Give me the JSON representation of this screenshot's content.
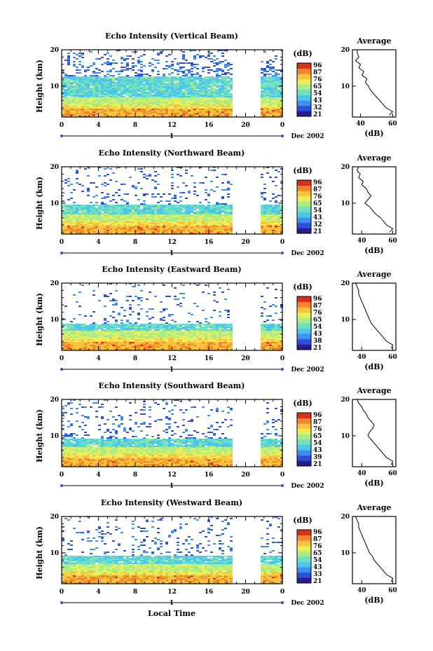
{
  "figure": {
    "xlabel": "Local Time",
    "date_label": "Dec 2002",
    "day_marker": "1"
  },
  "colorbar": {
    "unit_label": "(dB)",
    "colors": [
      "#2a1c8c",
      "#2f4fd6",
      "#3f8ff0",
      "#4cc7ea",
      "#6fe0c4",
      "#a6ec8a",
      "#e8ef5a",
      "#f6c43c",
      "#f2862c",
      "#d9301c"
    ]
  },
  "chart_data": [
    {
      "type": "heatmap",
      "title": "Echo Intensity (Vertical Beam)",
      "xlabel": "",
      "ylabel": "Height (km)",
      "x_ticks": [
        "0",
        "4",
        "8",
        "12",
        "16",
        "20",
        "0"
      ],
      "y_ticks": [
        "10",
        "20"
      ],
      "xlim": [
        0,
        24
      ],
      "ylim": [
        1.5,
        20
      ],
      "data_gaps_hours": [
        [
          18.3,
          21.6
        ]
      ],
      "colorbar_ticks": [
        "96",
        "87",
        "76",
        "65",
        "54",
        "43",
        "32",
        "21"
      ],
      "average_profile": {
        "title": "Average",
        "xlabel": "(dB)",
        "x_ticks": [
          "40",
          "60"
        ],
        "y_ticks": [
          "10",
          "20"
        ],
        "xlim": [
          35,
          62
        ],
        "height": [
          20,
          19,
          18,
          17,
          16,
          15,
          14,
          13,
          12,
          11,
          10,
          9,
          8,
          7,
          6,
          5,
          4,
          3,
          2
        ],
        "value": [
          38,
          38,
          39,
          37,
          40,
          39,
          42,
          41,
          44,
          43,
          45,
          46,
          48,
          50,
          52,
          54,
          56,
          60,
          58
        ]
      }
    },
    {
      "type": "heatmap",
      "title": "Echo Intensity (Northward Beam)",
      "xlabel": "",
      "ylabel": "Height (km)",
      "x_ticks": [
        "0",
        "4",
        "8",
        "12",
        "16",
        "20",
        "0"
      ],
      "y_ticks": [
        "10",
        "20"
      ],
      "xlim": [
        0,
        24
      ],
      "ylim": [
        1.5,
        20
      ],
      "data_gaps_hours": [
        [
          18.3,
          21.6
        ]
      ],
      "colorbar_ticks": [
        "96",
        "87",
        "76",
        "65",
        "54",
        "43",
        "32",
        "21"
      ],
      "average_profile": {
        "title": "Average",
        "xlabel": "(dB)",
        "x_ticks": [
          "40",
          "60"
        ],
        "y_ticks": [
          "10",
          "20"
        ],
        "xlim": [
          34,
          62
        ],
        "height": [
          20,
          19,
          18,
          17,
          16,
          15,
          14,
          13,
          12,
          11,
          10,
          9,
          8,
          7,
          6,
          5,
          4,
          3,
          2
        ],
        "value": [
          38,
          37,
          39,
          38,
          41,
          40,
          43,
          44,
          46,
          44,
          42,
          45,
          47,
          49,
          52,
          54,
          56,
          60,
          58
        ]
      }
    },
    {
      "type": "heatmap",
      "title": "Echo Intensity (Eastward Beam)",
      "xlabel": "",
      "ylabel": "Height (km)",
      "x_ticks": [
        "0",
        "4",
        "8",
        "12",
        "16",
        "20",
        "0"
      ],
      "y_ticks": [
        "10",
        "20"
      ],
      "xlim": [
        0,
        24
      ],
      "ylim": [
        1.5,
        20
      ],
      "data_gaps_hours": [
        [
          18.3,
          21.6
        ]
      ],
      "colorbar_ticks": [
        "96",
        "87",
        "76",
        "65",
        "54",
        "43",
        "38",
        "21"
      ],
      "average_profile": {
        "title": "Average",
        "xlabel": "(dB)",
        "x_ticks": [
          "40",
          "60"
        ],
        "y_ticks": [
          "10",
          "20"
        ],
        "xlim": [
          34,
          62
        ],
        "height": [
          20,
          19,
          18,
          17,
          16,
          15,
          14,
          13,
          12,
          11,
          10,
          9,
          8,
          7,
          6,
          5,
          4,
          3,
          2
        ],
        "value": [
          36,
          37,
          38,
          38,
          39,
          40,
          41,
          42,
          43,
          44,
          45,
          46,
          48,
          50,
          52,
          54,
          56,
          60,
          59
        ]
      }
    },
    {
      "type": "heatmap",
      "title": "Echo Intensity (Southward Beam)",
      "xlabel": "",
      "ylabel": "Height (km)",
      "x_ticks": [
        "0",
        "4",
        "8",
        "12",
        "16",
        "20",
        "0"
      ],
      "y_ticks": [
        "10",
        "20"
      ],
      "xlim": [
        0,
        24
      ],
      "ylim": [
        1.5,
        20
      ],
      "data_gaps_hours": [
        [
          18.3,
          21.6
        ]
      ],
      "colorbar_ticks": [
        "96",
        "87",
        "76",
        "65",
        "54",
        "43",
        "39",
        "21"
      ],
      "average_profile": {
        "title": "Average",
        "xlabel": "(dB)",
        "x_ticks": [
          "40",
          "60"
        ],
        "y_ticks": [
          "10",
          "20"
        ],
        "xlim": [
          34,
          62
        ],
        "height": [
          20,
          19,
          18,
          17,
          16,
          15,
          14,
          13,
          12,
          11,
          10,
          9,
          8,
          7,
          6,
          5,
          4,
          3,
          2
        ],
        "value": [
          37,
          38,
          40,
          41,
          43,
          44,
          46,
          48,
          47,
          45,
          44,
          46,
          48,
          50,
          52,
          54,
          56,
          60,
          59
        ]
      }
    },
    {
      "type": "heatmap",
      "title": "Echo Intensity (Westward Beam)",
      "xlabel": "",
      "ylabel": "Height (km)",
      "x_ticks": [
        "0",
        "4",
        "8",
        "12",
        "16",
        "20",
        "0"
      ],
      "y_ticks": [
        "10",
        "20"
      ],
      "xlim": [
        0,
        24
      ],
      "ylim": [
        1.5,
        20
      ],
      "data_gaps_hours": [
        [
          18.3,
          21.6
        ]
      ],
      "colorbar_ticks": [
        "96",
        "87",
        "76",
        "65",
        "54",
        "43",
        "33",
        "21"
      ],
      "average_profile": {
        "title": "Average",
        "xlabel": "(dB)",
        "x_ticks": [
          "40",
          "60"
        ],
        "y_ticks": [
          "10",
          "20"
        ],
        "xlim": [
          34,
          62
        ],
        "height": [
          20,
          19,
          18,
          17,
          16,
          15,
          14,
          13,
          12,
          11,
          10,
          9,
          8,
          7,
          6,
          5,
          4,
          3,
          2
        ],
        "value": [
          36,
          37,
          38,
          38,
          39,
          40,
          41,
          42,
          43,
          44,
          45,
          47,
          48,
          50,
          52,
          54,
          56,
          60,
          59
        ]
      }
    }
  ]
}
